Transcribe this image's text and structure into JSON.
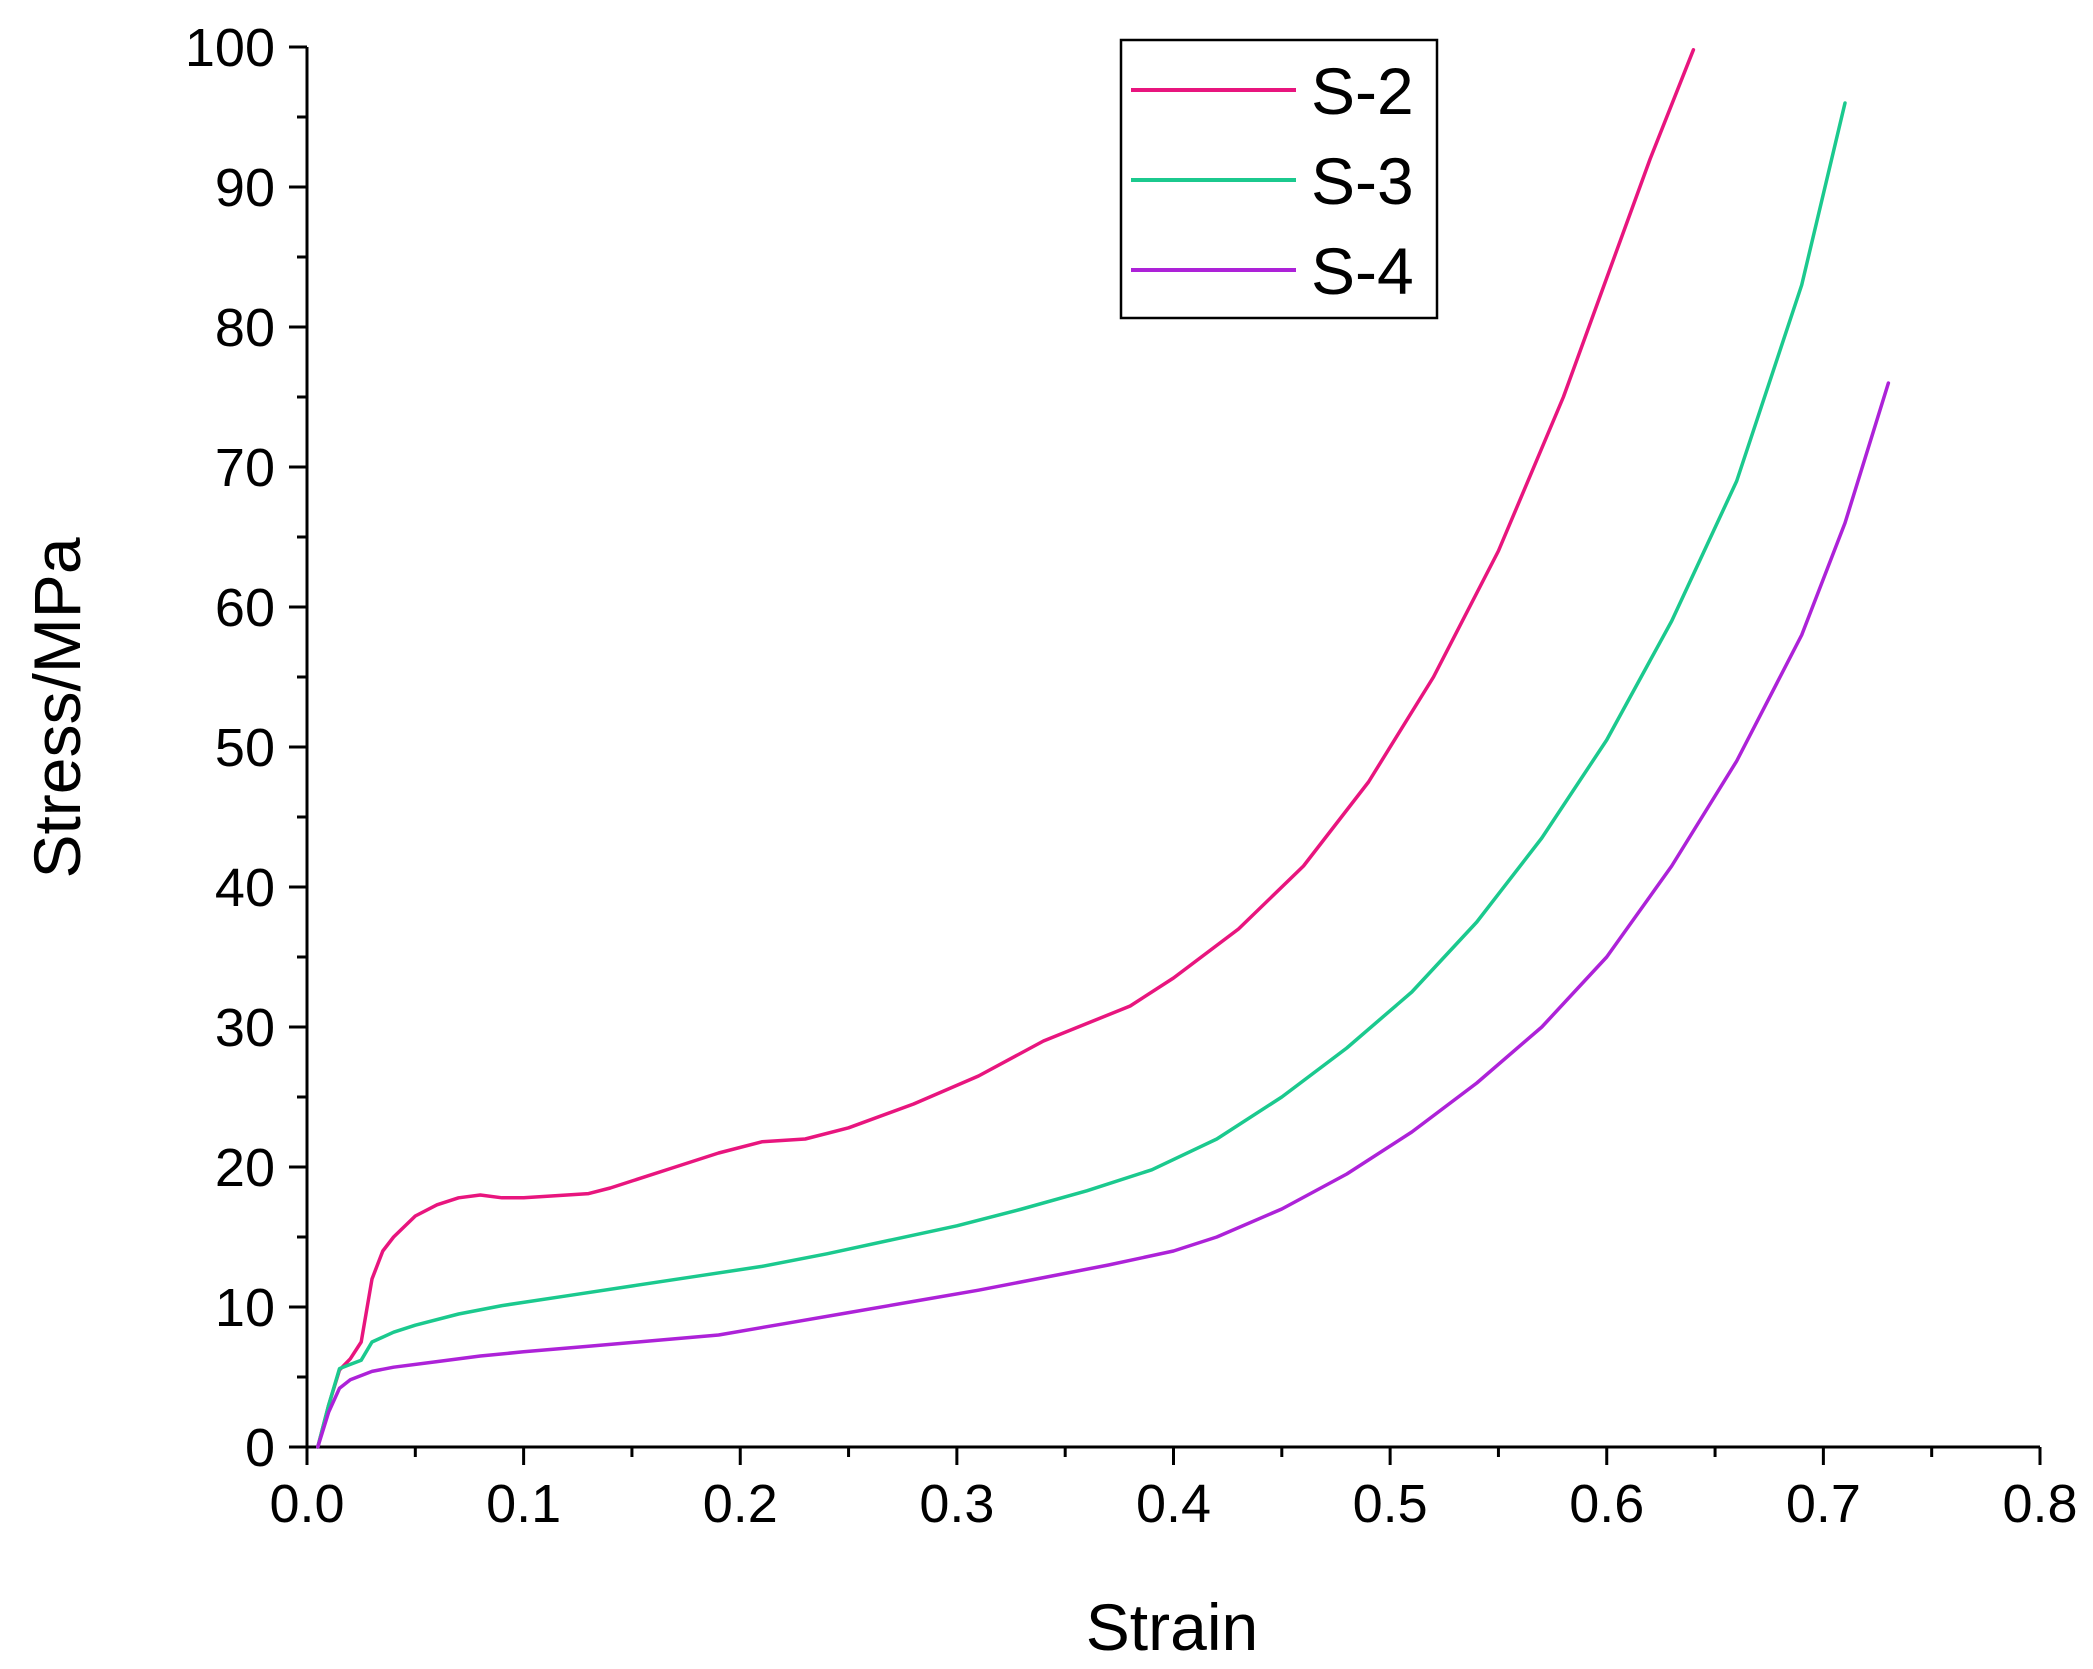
{
  "chart_data": {
    "type": "line",
    "title": "",
    "xlabel": "Strain",
    "ylabel": "Stress/MPa",
    "xlim": [
      0.0,
      0.8
    ],
    "ylim": [
      0,
      100
    ],
    "x_ticks": [
      "0.0",
      "0.1",
      "0.2",
      "0.3",
      "0.4",
      "0.5",
      "0.6",
      "0.7",
      "0.8"
    ],
    "y_ticks": [
      "0",
      "10",
      "20",
      "30",
      "40",
      "50",
      "60",
      "70",
      "80",
      "90",
      "100"
    ],
    "grid": false,
    "legend_position": "top-center",
    "series": [
      {
        "name": "S-2",
        "color": "#E8157E",
        "x": [
          0.005,
          0.01,
          0.015,
          0.02,
          0.025,
          0.03,
          0.035,
          0.04,
          0.05,
          0.06,
          0.07,
          0.08,
          0.09,
          0.1,
          0.11,
          0.12,
          0.13,
          0.14,
          0.15,
          0.17,
          0.19,
          0.21,
          0.23,
          0.25,
          0.28,
          0.31,
          0.34,
          0.38,
          0.4,
          0.43,
          0.46,
          0.49,
          0.52,
          0.55,
          0.58,
          0.6,
          0.62,
          0.64
        ],
        "y": [
          0,
          3,
          5.5,
          6.3,
          7.5,
          12,
          14,
          15,
          16.5,
          17.3,
          17.8,
          18,
          17.8,
          17.8,
          17.9,
          18,
          18.1,
          18.5,
          19,
          20,
          21,
          21.8,
          22,
          22.8,
          24.5,
          26.5,
          29,
          31.5,
          33.5,
          37,
          41.5,
          47.5,
          55,
          64,
          75,
          83.5,
          92,
          99.8
        ]
      },
      {
        "name": "S-3",
        "color": "#1BC98E",
        "x": [
          0.005,
          0.01,
          0.015,
          0.02,
          0.025,
          0.03,
          0.04,
          0.05,
          0.07,
          0.09,
          0.12,
          0.15,
          0.18,
          0.21,
          0.24,
          0.27,
          0.3,
          0.33,
          0.36,
          0.39,
          0.42,
          0.45,
          0.48,
          0.51,
          0.54,
          0.57,
          0.6,
          0.63,
          0.66,
          0.69,
          0.71
        ],
        "y": [
          0,
          3,
          5.6,
          5.9,
          6.2,
          7.5,
          8.2,
          8.7,
          9.5,
          10.1,
          10.8,
          11.5,
          12.2,
          12.9,
          13.8,
          14.8,
          15.8,
          17,
          18.3,
          19.8,
          22,
          25,
          28.5,
          32.5,
          37.5,
          43.5,
          50.5,
          59,
          69,
          83,
          96
        ]
      },
      {
        "name": "S-4",
        "color": "#AD22D8",
        "x": [
          0.005,
          0.01,
          0.015,
          0.02,
          0.03,
          0.04,
          0.06,
          0.08,
          0.1,
          0.13,
          0.16,
          0.19,
          0.22,
          0.25,
          0.28,
          0.31,
          0.34,
          0.37,
          0.4,
          0.42,
          0.45,
          0.48,
          0.51,
          0.54,
          0.57,
          0.6,
          0.63,
          0.66,
          0.69,
          0.71,
          0.73
        ],
        "y": [
          0,
          2.5,
          4.2,
          4.8,
          5.4,
          5.7,
          6.1,
          6.5,
          6.8,
          7.2,
          7.6,
          8,
          8.8,
          9.6,
          10.4,
          11.2,
          12.1,
          13,
          14,
          15,
          17,
          19.5,
          22.5,
          26,
          30,
          35,
          41.5,
          49,
          58,
          66,
          76
        ]
      }
    ]
  }
}
